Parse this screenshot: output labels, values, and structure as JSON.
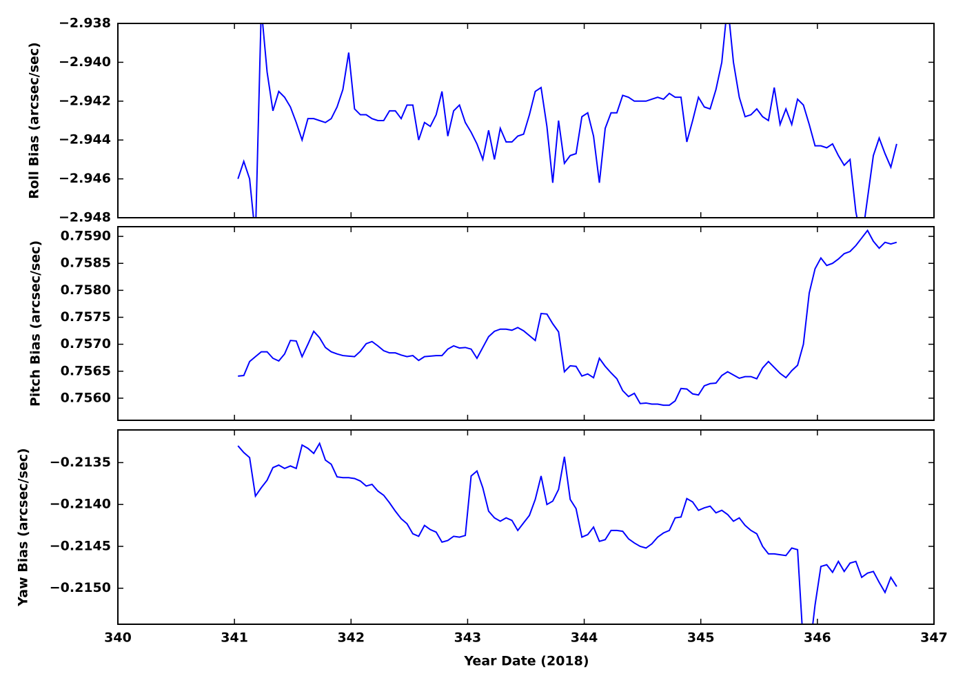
{
  "chart_data": {
    "type": "line",
    "xlabel": "Year Date (2018)",
    "xlim": [
      340,
      347
    ],
    "xticks": [
      340,
      341,
      342,
      343,
      344,
      345,
      346,
      347
    ],
    "x": [
      341.03,
      341.08,
      341.13,
      341.18,
      341.23,
      341.28,
      341.33,
      341.38,
      341.43,
      341.48,
      341.53,
      341.58,
      341.63,
      341.68,
      341.73,
      341.78,
      341.83,
      341.88,
      341.93,
      341.98,
      342.03,
      342.08,
      342.13,
      342.18,
      342.23,
      342.28,
      342.33,
      342.38,
      342.43,
      342.48,
      342.53,
      342.58,
      342.63,
      342.68,
      342.73,
      342.78,
      342.83,
      342.88,
      342.93,
      342.98,
      343.03,
      343.08,
      343.13,
      343.18,
      343.23,
      343.28,
      343.33,
      343.38,
      343.43,
      343.48,
      343.53,
      343.58,
      343.63,
      343.68,
      343.73,
      343.78,
      343.83,
      343.88,
      343.93,
      343.98,
      344.03,
      344.08,
      344.13,
      344.18,
      344.23,
      344.28,
      344.33,
      344.38,
      344.43,
      344.48,
      344.53,
      344.58,
      344.63,
      344.68,
      344.73,
      344.78,
      344.83,
      344.88,
      344.93,
      344.98,
      345.03,
      345.08,
      345.13,
      345.18,
      345.23,
      345.28,
      345.33,
      345.38,
      345.43,
      345.48,
      345.53,
      345.58,
      345.63,
      345.68,
      345.73,
      345.78,
      345.83,
      345.88,
      345.93,
      345.98,
      346.03,
      346.08,
      346.13,
      346.18,
      346.23,
      346.28,
      346.33,
      346.38,
      346.43,
      346.48,
      346.53,
      346.58,
      346.63,
      346.68
    ],
    "panels": [
      {
        "ylabel": "Roll Bias (arcsec/sec)",
        "color": "#0000ff",
        "ylim": [
          -2.948,
          -2.938
        ],
        "yticks": [
          {
            "value": -2.948,
            "label": "−2.948"
          },
          {
            "value": -2.946,
            "label": "−2.946"
          },
          {
            "value": -2.944,
            "label": "−2.944"
          },
          {
            "value": -2.942,
            "label": "−2.942"
          },
          {
            "value": -2.94,
            "label": "−2.940"
          },
          {
            "value": -2.938,
            "label": "−2.938"
          }
        ],
        "values": [
          -2.946,
          -2.9451,
          -2.946,
          -2.949,
          -2.9372,
          -2.9405,
          -2.9425,
          -2.9415,
          -2.9418,
          -2.9423,
          -2.9431,
          -2.944,
          -2.9429,
          -2.9429,
          -2.943,
          -2.9431,
          -2.9429,
          -2.9423,
          -2.9414,
          -2.9395,
          -2.9424,
          -2.9427,
          -2.9427,
          -2.9429,
          -2.943,
          -2.943,
          -2.9425,
          -2.9425,
          -2.9429,
          -2.9422,
          -2.9422,
          -2.944,
          -2.9431,
          -2.9433,
          -2.9427,
          -2.9415,
          -2.9438,
          -2.9425,
          -2.9422,
          -2.9431,
          -2.9436,
          -2.9442,
          -2.945,
          -2.9435,
          -2.945,
          -2.9434,
          -2.9441,
          -2.9441,
          -2.9438,
          -2.9437,
          -2.9427,
          -2.9415,
          -2.9413,
          -2.9433,
          -2.9462,
          -2.943,
          -2.9452,
          -2.9448,
          -2.9447,
          -2.9428,
          -2.9426,
          -2.9438,
          -2.9462,
          -2.9434,
          -2.9426,
          -2.9426,
          -2.9417,
          -2.9418,
          -2.942,
          -2.942,
          -2.942,
          -2.9419,
          -2.9418,
          -2.9419,
          -2.9416,
          -2.9418,
          -2.9418,
          -2.9441,
          -2.943,
          -2.9418,
          -2.9423,
          -2.9424,
          -2.9414,
          -2.94,
          -2.937,
          -2.94,
          -2.9418,
          -2.9428,
          -2.9427,
          -2.9424,
          -2.9428,
          -2.943,
          -2.9413,
          -2.9432,
          -2.9424,
          -2.9432,
          -2.9419,
          -2.9422,
          -2.9432,
          -2.9443,
          -2.9443,
          -2.9444,
          -2.9442,
          -2.9448,
          -2.9453,
          -2.945,
          -2.9477,
          -2.9492,
          -2.947,
          -2.9448,
          -2.9439,
          -2.9447,
          -2.9454,
          -2.9442
        ]
      },
      {
        "ylabel": "Pitch Bias (arcsec/sec)",
        "color": "#0000ff",
        "ylim": [
          0.75559,
          0.75918
        ],
        "yticks": [
          {
            "value": 0.756,
            "label": "0.7560"
          },
          {
            "value": 0.7565,
            "label": "0.7565"
          },
          {
            "value": 0.757,
            "label": "0.7570"
          },
          {
            "value": 0.7575,
            "label": "0.7575"
          },
          {
            "value": 0.758,
            "label": "0.7580"
          },
          {
            "value": 0.7585,
            "label": "0.7585"
          },
          {
            "value": 0.759,
            "label": "0.7590"
          }
        ],
        "values": [
          0.75641,
          0.75642,
          0.75668,
          0.75677,
          0.75686,
          0.75686,
          0.75674,
          0.75669,
          0.75682,
          0.75707,
          0.75706,
          0.75677,
          0.757,
          0.75724,
          0.75712,
          0.75694,
          0.75686,
          0.75682,
          0.75679,
          0.75678,
          0.75677,
          0.75687,
          0.75701,
          0.75705,
          0.75697,
          0.75688,
          0.75684,
          0.75684,
          0.7568,
          0.75677,
          0.75679,
          0.7567,
          0.75677,
          0.75678,
          0.75679,
          0.75679,
          0.75691,
          0.75697,
          0.75693,
          0.75694,
          0.75691,
          0.75674,
          0.75694,
          0.75714,
          0.75724,
          0.75728,
          0.75728,
          0.75726,
          0.75731,
          0.75725,
          0.75716,
          0.75707,
          0.75757,
          0.75756,
          0.75738,
          0.75723,
          0.75649,
          0.7566,
          0.75659,
          0.75641,
          0.75645,
          0.75638,
          0.75674,
          0.75659,
          0.75647,
          0.75636,
          0.75614,
          0.75603,
          0.75609,
          0.7559,
          0.75591,
          0.75589,
          0.75589,
          0.75587,
          0.75587,
          0.75595,
          0.75618,
          0.75617,
          0.75608,
          0.75606,
          0.75623,
          0.75627,
          0.75628,
          0.75642,
          0.75649,
          0.75643,
          0.75637,
          0.7564,
          0.7564,
          0.75636,
          0.75656,
          0.75668,
          0.75657,
          0.75646,
          0.75638,
          0.75651,
          0.75661,
          0.757,
          0.75795,
          0.7584,
          0.7586,
          0.75846,
          0.7585,
          0.75858,
          0.75868,
          0.75872,
          0.75883,
          0.75897,
          0.75911,
          0.75891,
          0.75878,
          0.75889,
          0.75886,
          0.75889
        ]
      },
      {
        "ylabel": "Yaw Bias (arcsec/sec)",
        "color": "#0000ff",
        "ylim": [
          -0.21543,
          -0.21311
        ],
        "yticks": [
          {
            "value": -0.215,
            "label": "−0.2150"
          },
          {
            "value": -0.2145,
            "label": "−0.2145"
          },
          {
            "value": -0.214,
            "label": "−0.2140"
          },
          {
            "value": -0.2135,
            "label": "−0.2135"
          }
        ],
        "values": [
          -0.2133,
          -0.21338,
          -0.21344,
          -0.2139,
          -0.2138,
          -0.21371,
          -0.21356,
          -0.21353,
          -0.21357,
          -0.21354,
          -0.21357,
          -0.21329,
          -0.21333,
          -0.21339,
          -0.21327,
          -0.21347,
          -0.21352,
          -0.21367,
          -0.21368,
          -0.21368,
          -0.21369,
          -0.21372,
          -0.21378,
          -0.21376,
          -0.21384,
          -0.21389,
          -0.21398,
          -0.21408,
          -0.21417,
          -0.21423,
          -0.21435,
          -0.21438,
          -0.21425,
          -0.2143,
          -0.21433,
          -0.21445,
          -0.21443,
          -0.21438,
          -0.21439,
          -0.21437,
          -0.21366,
          -0.2136,
          -0.2138,
          -0.21408,
          -0.21416,
          -0.2142,
          -0.21416,
          -0.21419,
          -0.21431,
          -0.21422,
          -0.21413,
          -0.21394,
          -0.21366,
          -0.214,
          -0.21396,
          -0.21382,
          -0.21343,
          -0.21394,
          -0.21405,
          -0.21439,
          -0.21436,
          -0.21427,
          -0.21444,
          -0.21442,
          -0.21431,
          -0.21431,
          -0.21432,
          -0.21441,
          -0.21446,
          -0.2145,
          -0.21452,
          -0.21447,
          -0.21439,
          -0.21434,
          -0.21431,
          -0.21416,
          -0.21415,
          -0.21393,
          -0.21397,
          -0.21407,
          -0.21404,
          -0.21402,
          -0.2141,
          -0.21407,
          -0.21412,
          -0.2142,
          -0.21416,
          -0.21425,
          -0.21431,
          -0.21435,
          -0.2145,
          -0.21459,
          -0.21459,
          -0.2146,
          -0.21461,
          -0.21452,
          -0.21454,
          -0.2157,
          -0.21579,
          -0.2152,
          -0.21474,
          -0.21472,
          -0.21481,
          -0.21468,
          -0.2148,
          -0.2147,
          -0.21468,
          -0.21487,
          -0.21482,
          -0.2148,
          -0.21493,
          -0.21505,
          -0.21487,
          -0.21498
        ]
      }
    ]
  }
}
